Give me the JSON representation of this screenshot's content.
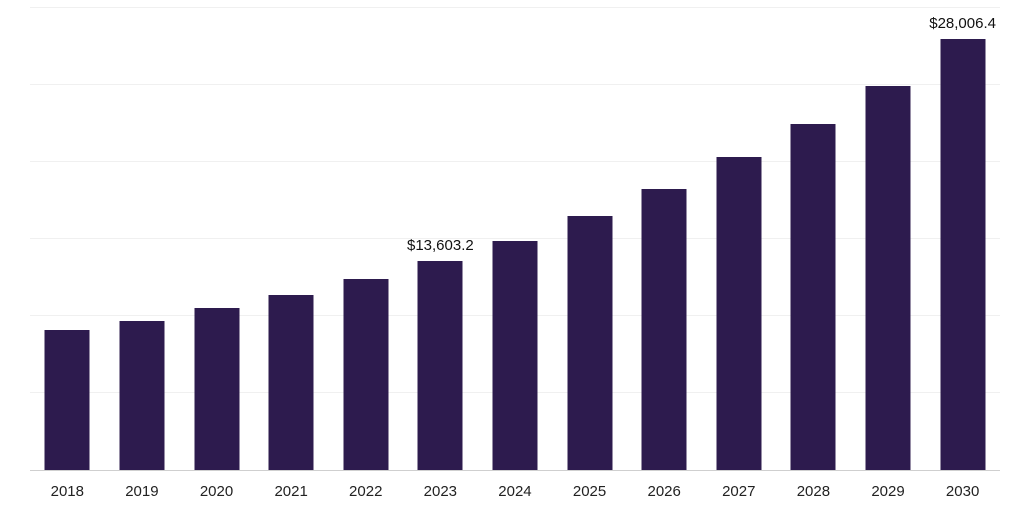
{
  "chart_data": {
    "type": "bar",
    "title": "",
    "xlabel": "",
    "ylabel": "",
    "categories": [
      "2018",
      "2019",
      "2020",
      "2021",
      "2022",
      "2023",
      "2024",
      "2025",
      "2026",
      "2027",
      "2028",
      "2029",
      "2030"
    ],
    "values": [
      9100,
      9700,
      10500,
      11350,
      12430,
      13603.2,
      14880,
      16470,
      18260,
      20300,
      22470,
      24960,
      28006.4
    ],
    "annotations": [
      {
        "category": "2023",
        "label": "$13,603.2"
      },
      {
        "category": "2030",
        "label": "$28,006.4"
      }
    ],
    "bar_color": "#2d1b4e",
    "ylim": [
      0,
      30000
    ],
    "gridline_step": 5000,
    "grid": true,
    "legend_position": "none"
  },
  "colors": {
    "background": "#ffffff",
    "gridline": "#f0f0f0",
    "axis_line": "#cfcfcf",
    "tick_label": "#222222",
    "data_label": "#111111"
  }
}
